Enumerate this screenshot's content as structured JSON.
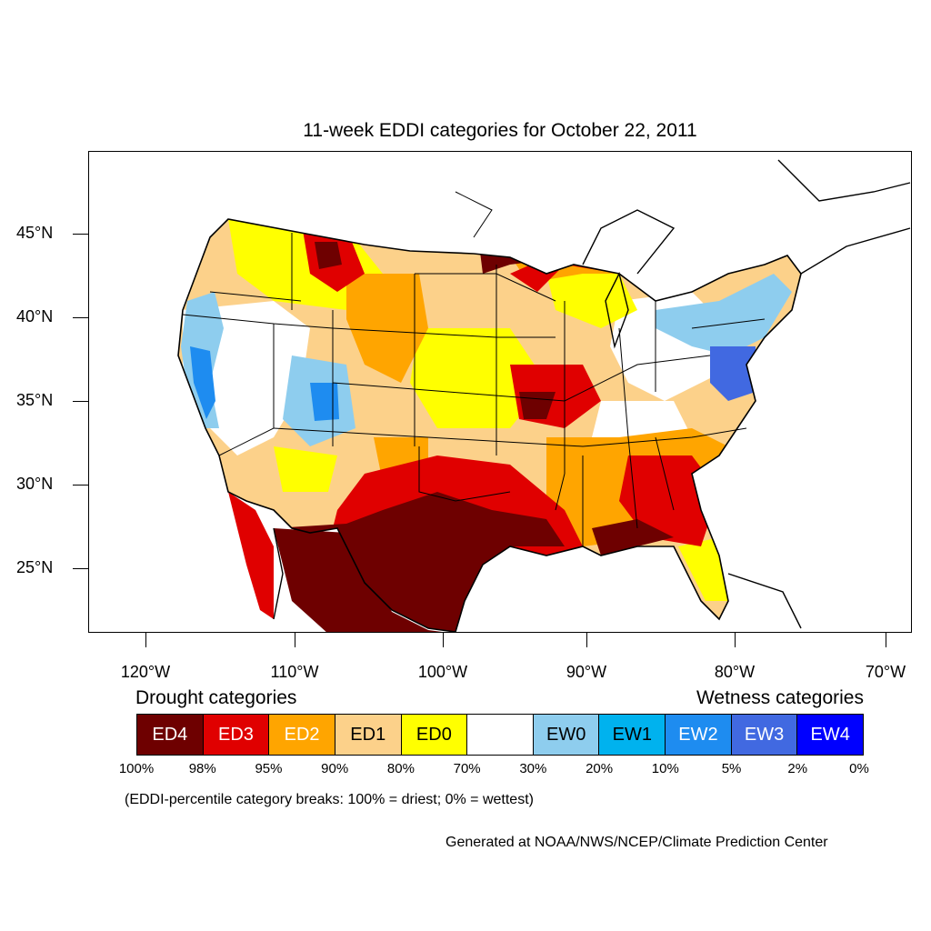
{
  "title": "11-week EDDI categories for October 22, 2011",
  "map": {
    "type": "choropleth-map",
    "region": "Contiguous United States",
    "lat_labels": [
      "45°N",
      "40°N",
      "35°N",
      "30°N",
      "25°N"
    ],
    "lon_labels": [
      "120°W",
      "110°W",
      "100°W",
      "90°W",
      "80°W",
      "70°W"
    ],
    "colors": {
      "ED4": "#6e0000",
      "ED3": "#e00000",
      "ED2": "#ffa500",
      "ED1": "#fcd18a",
      "ED0": "#ffff00",
      "neutral": "#ffffff",
      "EW0": "#8ecdee",
      "EW1": "#00b2ee",
      "EW2": "#1e8cf0",
      "EW3": "#4169e1",
      "EW4": "#0000ff"
    }
  },
  "legend": {
    "drought_heading": "Drought categories",
    "wetness_heading": "Wetness categories",
    "categories": [
      {
        "label": "ED4",
        "color": "#6e0000",
        "text_color": "#ffffff"
      },
      {
        "label": "ED3",
        "color": "#e00000",
        "text_color": "#ffffff"
      },
      {
        "label": "ED2",
        "color": "#ffa500",
        "text_color": "#ffffff"
      },
      {
        "label": "ED1",
        "color": "#fcd18a",
        "text_color": "#000000"
      },
      {
        "label": "ED0",
        "color": "#ffff00",
        "text_color": "#000000"
      },
      {
        "label": "",
        "color": "#ffffff",
        "text_color": "#000000"
      },
      {
        "label": "EW0",
        "color": "#8ecdee",
        "text_color": "#000000"
      },
      {
        "label": "EW1",
        "color": "#00b2ee",
        "text_color": "#000000"
      },
      {
        "label": "EW2",
        "color": "#1e8cf0",
        "text_color": "#ffffff"
      },
      {
        "label": "EW3",
        "color": "#4169e1",
        "text_color": "#ffffff"
      },
      {
        "label": "EW4",
        "color": "#0000ff",
        "text_color": "#ffffff"
      }
    ],
    "breaks": [
      "100%",
      "98%",
      "95%",
      "90%",
      "80%",
      "70%",
      "30%",
      "20%",
      "10%",
      "5%",
      "2%",
      "0%"
    ]
  },
  "breaks_note": "(EDDI-percentile category breaks: 100% = driest; 0% = wettest)",
  "credit": "Generated at NOAA/NWS/NCEP/Climate Prediction Center"
}
